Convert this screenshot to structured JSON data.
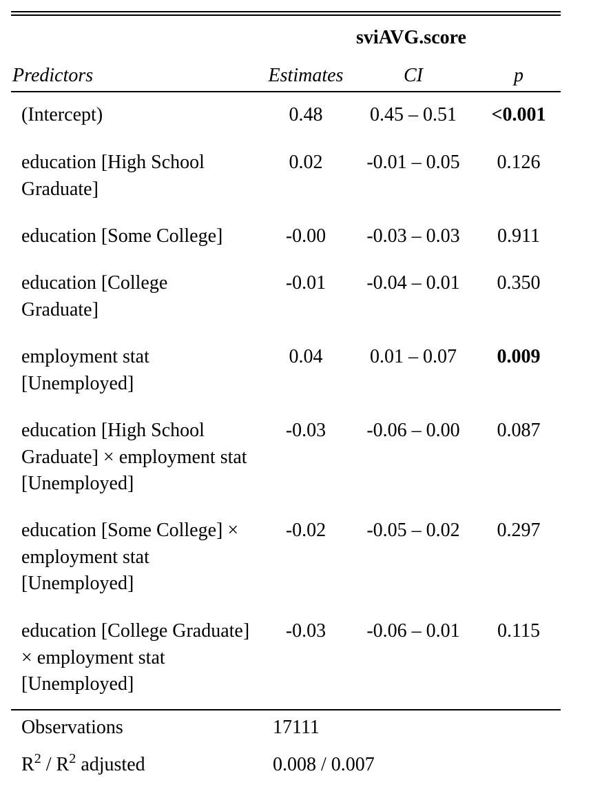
{
  "table": {
    "dependent_variable": "sviAVG.score",
    "headers": {
      "predictors": "Predictors",
      "estimates": "Estimates",
      "ci": "CI",
      "p": "p"
    },
    "rows": [
      {
        "predictor": "(Intercept)",
        "estimate": "0.48",
        "ci": "0.45 – 0.51",
        "p": "<0.001",
        "p_bold": true
      },
      {
        "predictor": "education [High School Graduate]",
        "estimate": "0.02",
        "ci": "-0.01 – 0.05",
        "p": "0.126",
        "p_bold": false
      },
      {
        "predictor": "education [Some College]",
        "estimate": "-0.00",
        "ci": "-0.03 – 0.03",
        "p": "0.911",
        "p_bold": false
      },
      {
        "predictor": "education [College Graduate]",
        "estimate": "-0.01",
        "ci": "-0.04 – 0.01",
        "p": "0.350",
        "p_bold": false
      },
      {
        "predictor": "employment stat [Unemployed]",
        "estimate": "0.04",
        "ci": "0.01 – 0.07",
        "p": "0.009",
        "p_bold": true
      },
      {
        "predictor": "education [High School Graduate] × employment stat [Unemployed]",
        "estimate": "-0.03",
        "ci": "-0.06 – 0.00",
        "p": "0.087",
        "p_bold": false
      },
      {
        "predictor": "education [Some College] × employment stat [Unemployed]",
        "estimate": "-0.02",
        "ci": "-0.05 – 0.02",
        "p": "0.297",
        "p_bold": false
      },
      {
        "predictor": "education [College Graduate] × employment stat [Unemployed]",
        "estimate": "-0.03",
        "ci": "-0.06 – 0.01",
        "p": "0.115",
        "p_bold": false
      }
    ],
    "footer": {
      "observations_label": "Observations",
      "observations_value": "17111",
      "r2_label_r": "R",
      "r2_label_sup": "2",
      "r2_label_sep": " / R",
      "r2_label_sup2": "2",
      "r2_label_tail": " adjusted",
      "r2_value": "0.008 / 0.007"
    }
  }
}
